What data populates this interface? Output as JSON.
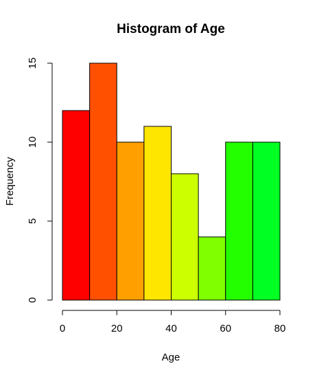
{
  "chart_data": {
    "type": "bar",
    "title": "Histogram of Age",
    "xlabel": "Age",
    "ylabel": "Frequency",
    "bins": [
      {
        "from": 0,
        "to": 10,
        "count": 12,
        "color": "#FF0000"
      },
      {
        "from": 10,
        "to": 20,
        "count": 15,
        "color": "#FF5000"
      },
      {
        "from": 20,
        "to": 30,
        "count": 10,
        "color": "#FF9F00"
      },
      {
        "from": 30,
        "to": 40,
        "count": 11,
        "color": "#FFE600"
      },
      {
        "from": 40,
        "to": 50,
        "count": 8,
        "color": "#CCFF00"
      },
      {
        "from": 50,
        "to": 60,
        "count": 4,
        "color": "#80FF00"
      },
      {
        "from": 60,
        "to": 70,
        "count": 10,
        "color": "#24FF00"
      },
      {
        "from": 70,
        "to": 80,
        "count": 10,
        "color": "#00FF22"
      }
    ],
    "xlim": [
      0,
      80
    ],
    "ylim": [
      0,
      15
    ],
    "x_ticks": [
      0,
      20,
      40,
      60,
      80
    ],
    "y_ticks": [
      0,
      5,
      10,
      15
    ],
    "grid": false,
    "legend": "none"
  }
}
